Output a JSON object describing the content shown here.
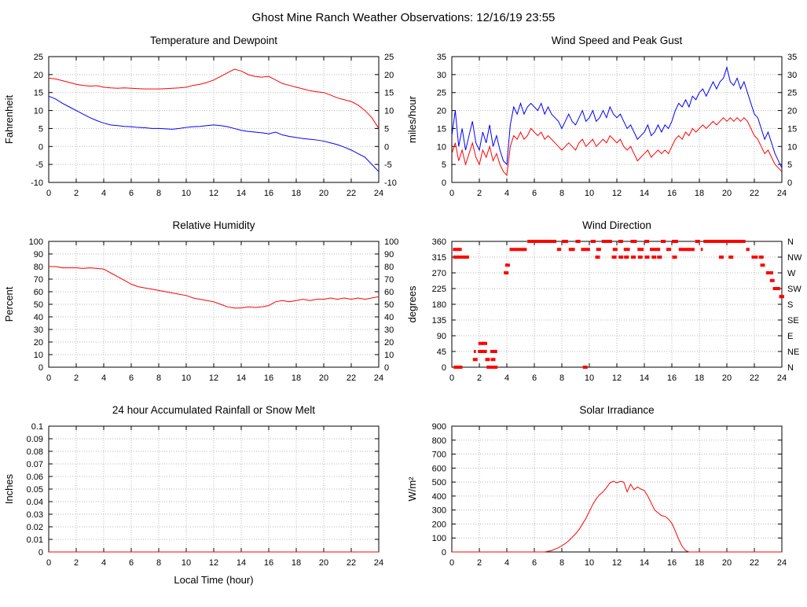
{
  "page_title": "Ghost Mine Ranch Weather Observations: 12/16/19 23:55",
  "colors": {
    "temperature": "#ff0000",
    "dewpoint": "#0000ff",
    "wind_speed": "#ff0000",
    "peak_gust": "#0000ff",
    "humidity": "#ff0000",
    "wind_direction": "#ff0000",
    "rainfall": "#ff0000",
    "solar": "#ff0000"
  },
  "chart_data": [
    {
      "id": "temp_dewpoint",
      "type": "line",
      "title": "Temperature and Dewpoint",
      "ylabel": "Fahrenheit",
      "xlim": [
        0,
        24
      ],
      "ylim": [
        -10,
        25
      ],
      "xticks": [
        0,
        2,
        4,
        6,
        8,
        10,
        12,
        14,
        16,
        18,
        20,
        22,
        24
      ],
      "yticks": [
        -10,
        -5,
        0,
        5,
        10,
        15,
        20,
        25
      ],
      "ytick_labels": [
        "-10",
        "-5",
        "0",
        "5",
        "10",
        "15",
        "20",
        "25"
      ],
      "right_labels": [
        "-10",
        "-5",
        "0",
        "5",
        "10",
        "15",
        "20",
        "25"
      ],
      "series": [
        {
          "name": "Temperature",
          "color": "#ff0000",
          "x_start": 0,
          "x_step": 0.5,
          "y": [
            19,
            18.8,
            18.3,
            17.8,
            17.3,
            17,
            16.8,
            16.9,
            16.5,
            16.3,
            16.2,
            16.3,
            16.2,
            16.1,
            16,
            16,
            16,
            16.1,
            16.2,
            16.3,
            16.5,
            17,
            17.3,
            17.8,
            18.5,
            19.5,
            20.5,
            21.5,
            21,
            20,
            19.5,
            19.3,
            19.5,
            18.5,
            17.5,
            17,
            16.5,
            16,
            15.5,
            15.2,
            15,
            14.3,
            13.5,
            13,
            12.5,
            11.5,
            10,
            8,
            5
          ]
        },
        {
          "name": "Dewpoint",
          "color": "#0000ff",
          "x_start": 0,
          "x_step": 0.5,
          "y": [
            14,
            13.2,
            12,
            11,
            10,
            9,
            8,
            7.2,
            6.5,
            6,
            5.8,
            5.6,
            5.5,
            5.3,
            5.2,
            5,
            5,
            4.9,
            4.8,
            5,
            5.3,
            5.5,
            5.6,
            5.8,
            6,
            5.8,
            5.5,
            5,
            4.5,
            4.2,
            4,
            3.8,
            3.5,
            4,
            3.2,
            2.8,
            2.5,
            2.2,
            2,
            1.8,
            1.5,
            1,
            0.5,
            -0.2,
            -1,
            -2,
            -3,
            -5,
            -7
          ]
        }
      ]
    },
    {
      "id": "wind_speed",
      "type": "line",
      "title": "Wind Speed and Peak Gust",
      "ylabel": "miles/hour",
      "xlim": [
        0,
        24
      ],
      "ylim": [
        0,
        35
      ],
      "xticks": [
        0,
        2,
        4,
        6,
        8,
        10,
        12,
        14,
        16,
        18,
        20,
        22,
        24
      ],
      "yticks": [
        0,
        5,
        10,
        15,
        20,
        25,
        30,
        35
      ],
      "ytick_labels": [
        "0",
        "5",
        "10",
        "15",
        "20",
        "25",
        "30",
        "35"
      ],
      "right_labels": [
        "0",
        "5",
        "10",
        "15",
        "20",
        "25",
        "30",
        "35"
      ],
      "series": [
        {
          "name": "Peak Gust",
          "color": "#0000ff",
          "x_start": 0,
          "x_step": 0.25,
          "y": [
            13,
            20,
            10,
            15,
            9,
            13,
            17,
            11,
            9,
            14,
            11,
            16,
            10,
            13,
            9,
            6,
            5,
            16,
            21,
            19,
            22,
            19,
            21,
            22,
            21,
            20,
            22,
            19,
            21,
            19,
            18,
            17,
            15,
            17,
            19,
            17,
            16,
            18,
            20,
            17,
            18,
            20,
            17,
            18,
            20,
            18,
            21,
            19,
            18,
            19,
            17,
            15,
            16,
            14,
            12,
            13,
            14,
            16,
            13,
            14,
            16,
            14,
            16,
            15,
            17,
            20,
            22,
            21,
            23,
            21,
            24,
            23,
            25,
            26,
            24,
            26,
            28,
            26,
            28,
            29,
            32,
            28,
            27,
            29,
            26,
            28,
            25,
            22,
            19,
            18,
            15,
            12,
            14,
            11,
            8,
            6,
            4
          ]
        },
        {
          "name": "Wind Speed",
          "color": "#ff0000",
          "x_start": 0,
          "x_step": 0.25,
          "y": [
            8,
            11,
            6,
            9,
            5,
            8,
            11,
            7,
            5,
            9,
            7,
            10,
            6,
            8,
            5,
            3,
            2,
            10,
            13,
            12,
            14,
            12,
            13,
            15,
            14,
            13,
            14,
            12,
            13,
            12,
            11,
            10,
            9,
            10,
            11,
            10,
            9,
            11,
            12,
            10,
            11,
            12,
            10,
            11,
            12,
            11,
            13,
            12,
            11,
            12,
            10,
            9,
            10,
            8,
            6,
            7,
            8,
            9,
            7,
            8,
            9,
            8,
            9,
            8,
            10,
            12,
            13,
            12,
            14,
            13,
            15,
            14,
            15,
            16,
            15,
            16,
            17,
            16,
            17,
            18,
            17,
            18,
            17,
            18,
            17,
            18,
            17,
            15,
            13,
            12,
            10,
            8,
            9,
            7,
            5,
            4,
            3
          ]
        }
      ]
    },
    {
      "id": "humidity",
      "type": "line",
      "title": "Relative Humidity",
      "ylabel": "Percent",
      "xlim": [
        0,
        24
      ],
      "ylim": [
        0,
        100
      ],
      "xticks": [
        0,
        2,
        4,
        6,
        8,
        10,
        12,
        14,
        16,
        18,
        20,
        22,
        24
      ],
      "yticks": [
        0,
        10,
        20,
        30,
        40,
        50,
        60,
        70,
        80,
        90,
        100
      ],
      "ytick_labels": [
        "0",
        "10",
        "20",
        "30",
        "40",
        "50",
        "60",
        "70",
        "80",
        "90",
        "100"
      ],
      "right_labels": [
        "0",
        "10",
        "20",
        "30",
        "40",
        "50",
        "60",
        "70",
        "80",
        "90",
        "100"
      ],
      "series": [
        {
          "name": "Relative Humidity",
          "color": "#ff0000",
          "x_start": 0,
          "x_step": 0.5,
          "y": [
            80,
            80,
            79,
            79,
            79,
            78.5,
            79,
            78.5,
            78,
            75,
            72,
            69,
            66,
            64,
            63,
            62,
            61,
            60,
            59,
            58,
            57,
            55,
            54,
            53,
            52,
            50,
            48,
            47,
            47,
            48,
            47.5,
            48,
            49,
            52,
            53,
            52,
            53,
            54,
            53,
            54,
            54,
            55,
            54,
            55,
            54,
            55,
            54,
            55,
            56
          ]
        }
      ]
    },
    {
      "id": "wind_direction",
      "type": "segments",
      "title": "Wind Direction",
      "ylabel": "degrees",
      "xlim": [
        0,
        24
      ],
      "ylim": [
        0,
        360
      ],
      "xticks": [
        0,
        2,
        4,
        6,
        8,
        10,
        12,
        14,
        16,
        18,
        20,
        22,
        24
      ],
      "yticks": [
        0,
        45,
        90,
        135,
        180,
        225,
        270,
        315,
        360
      ],
      "ytick_labels": [
        "0",
        "45",
        "90",
        "135",
        "180",
        "225",
        "270",
        "315",
        "360"
      ],
      "right_labels": [
        "N",
        "NE",
        "E",
        "SE",
        "S",
        "SW",
        "W",
        "NW",
        "N"
      ],
      "series": [
        {
          "name": "Wind Direction",
          "color": "#ff0000",
          "segments": [
            [
              315,
              0.1,
              1.25
            ],
            [
              45,
              1.6,
              1.75
            ],
            [
              45,
              1.9,
              2.55
            ],
            [
              45,
              2.8,
              3.3
            ],
            [
              337,
              4.2,
              5.45
            ],
            [
              360,
              5.5,
              7.6
            ],
            [
              337,
              7.65,
              7.95
            ],
            [
              360,
              8.0,
              8.45
            ],
            [
              337,
              8.5,
              8.95
            ],
            [
              360,
              9.0,
              9.35
            ],
            [
              337,
              9.4,
              10.05
            ],
            [
              360,
              10.1,
              10.45
            ],
            [
              337,
              10.5,
              10.85
            ],
            [
              360,
              10.9,
              11.65
            ],
            [
              337,
              11.7,
              12.05
            ],
            [
              360,
              12.1,
              12.45
            ],
            [
              337,
              12.5,
              12.95
            ],
            [
              360,
              13.0,
              13.45
            ],
            [
              337,
              13.5,
              13.95
            ],
            [
              360,
              14.0,
              14.35
            ],
            [
              337,
              14.4,
              15.15
            ],
            [
              360,
              15.2,
              15.55
            ],
            [
              337,
              15.6,
              15.95
            ],
            [
              360,
              16.0,
              16.45
            ],
            [
              337,
              16.5,
              17.65
            ],
            [
              360,
              17.7,
              18.05
            ],
            [
              337,
              18.1,
              18.25
            ],
            [
              360,
              18.3,
              21.35
            ],
            [
              337,
              21.4,
              21.65
            ],
            [
              315,
              21.8,
              22.25
            ],
            [
              270,
              22.85,
              23.1
            ],
            [
              225,
              23.35,
              23.65
            ],
            [
              202,
              23.8,
              23.95
            ]
          ],
          "dots": [
            [
              0.25,
              337
            ],
            [
              0.55,
              337
            ],
            [
              0.3,
              0
            ],
            [
              0.6,
              0
            ],
            [
              2.7,
              0
            ],
            [
              2.95,
              0
            ],
            [
              3.15,
              0
            ],
            [
              9.7,
              0
            ],
            [
              1.7,
              22
            ],
            [
              2.6,
              22
            ],
            [
              3.0,
              22
            ],
            [
              2.1,
              68
            ],
            [
              2.4,
              68
            ],
            [
              3.95,
              270
            ],
            [
              4.05,
              292
            ],
            [
              10.6,
              315
            ],
            [
              11.8,
              315
            ],
            [
              12.3,
              315
            ],
            [
              12.7,
              315
            ],
            [
              13.2,
              315
            ],
            [
              13.7,
              315
            ],
            [
              14.2,
              315
            ],
            [
              14.7,
              315
            ],
            [
              15.1,
              315
            ],
            [
              16.2,
              315
            ],
            [
              19.6,
              315
            ],
            [
              20.3,
              315
            ],
            [
              22.5,
              315
            ],
            [
              22.6,
              292
            ],
            [
              23.2,
              270
            ],
            [
              23.3,
              248
            ],
            [
              23.7,
              225
            ],
            [
              24.0,
              202
            ]
          ]
        }
      ]
    },
    {
      "id": "rainfall",
      "type": "line",
      "title": "24 hour Accumulated Rainfall or Snow Melt",
      "ylabel": "Inches",
      "xlabel": "Local Time (hour)",
      "xlim": [
        0,
        24
      ],
      "ylim": [
        0,
        0.1
      ],
      "xticks": [
        0,
        2,
        4,
        6,
        8,
        10,
        12,
        14,
        16,
        18,
        20,
        22,
        24
      ],
      "yticks": [
        0,
        0.01,
        0.02,
        0.03,
        0.04,
        0.05,
        0.06,
        0.07,
        0.08,
        0.09,
        0.1
      ],
      "ytick_labels": [
        "0",
        "0.01",
        "0.02",
        "0.03",
        "0.04",
        "0.05",
        "0.06",
        "0.07",
        "0.08",
        "0.09",
        "0.1"
      ],
      "series": [
        {
          "name": "Rainfall",
          "color": "#ff0000",
          "x": [
            0,
            24
          ],
          "y": [
            0,
            0
          ]
        }
      ]
    },
    {
      "id": "solar",
      "type": "line",
      "title": "Solar Irradiance",
      "ylabel": "W/m²",
      "xlim": [
        0,
        24
      ],
      "ylim": [
        0,
        900
      ],
      "xticks": [
        0,
        2,
        4,
        6,
        8,
        10,
        12,
        14,
        16,
        18,
        20,
        22,
        24
      ],
      "yticks": [
        0,
        100,
        200,
        300,
        400,
        500,
        600,
        700,
        800,
        900
      ],
      "ytick_labels": [
        "0",
        "100",
        "200",
        "300",
        "400",
        "500",
        "600",
        "700",
        "800",
        "900"
      ],
      "series": [
        {
          "name": "Solar Irradiance",
          "color": "#ff0000",
          "x_start": 0,
          "x_step": 0.25,
          "y": [
            0,
            0,
            0,
            0,
            0,
            0,
            0,
            0,
            0,
            0,
            0,
            0,
            0,
            0,
            0,
            0,
            0,
            0,
            0,
            0,
            0,
            0,
            0,
            0,
            0,
            0,
            0,
            0,
            5,
            10,
            20,
            30,
            45,
            60,
            80,
            105,
            130,
            160,
            200,
            240,
            290,
            340,
            380,
            410,
            430,
            460,
            495,
            505,
            495,
            505,
            500,
            430,
            485,
            445,
            465,
            450,
            440,
            400,
            350,
            300,
            280,
            260,
            255,
            235,
            205,
            150,
            90,
            40,
            10,
            0,
            0,
            0,
            0,
            0,
            0,
            0,
            0,
            0,
            0,
            0,
            0,
            0,
            0,
            0,
            0,
            0,
            0,
            0,
            0,
            0,
            0,
            0,
            0,
            0,
            0,
            0,
            0
          ]
        }
      ]
    }
  ]
}
